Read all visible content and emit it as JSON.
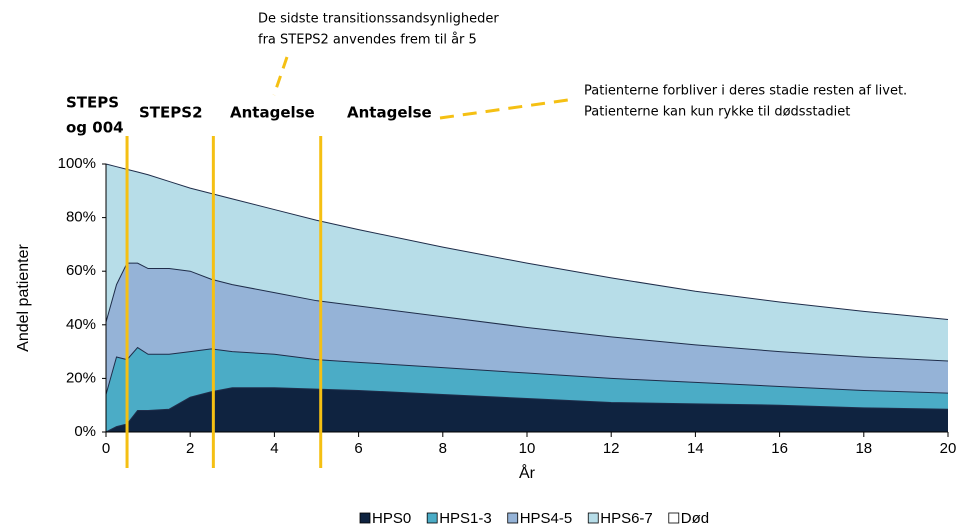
{
  "chart_data": {
    "type": "stacked_area",
    "y_label": "Andel patienter",
    "x_label": "År",
    "x": [
      0,
      0.25,
      0.5,
      0.75,
      1,
      1.5,
      2,
      2.5,
      3,
      4,
      5,
      6,
      8,
      10,
      12,
      14,
      16,
      18,
      20
    ],
    "series": [
      {
        "name": "HPS0",
        "color": "#0f2340",
        "values": [
          0,
          2,
          3,
          8,
          8,
          8.5,
          13,
          15,
          16.5,
          16.5,
          16,
          15.5,
          14,
          12.5,
          11,
          10.5,
          10,
          9,
          8.5
        ]
      },
      {
        "name": "HPS1-3",
        "color": "#4bacc6",
        "values": [
          14,
          26,
          24,
          23.5,
          21,
          20.5,
          17,
          16,
          13.5,
          12.5,
          11,
          10.5,
          10,
          9.5,
          9,
          8,
          7,
          6.5,
          6
        ]
      },
      {
        "name": "HPS4-5",
        "color": "#95b3d7",
        "values": [
          27,
          27,
          36,
          31.5,
          32,
          32,
          30,
          26,
          25,
          23,
          22,
          21,
          19,
          17,
          15.5,
          14,
          13,
          12.5,
          12
        ]
      },
      {
        "name": "HPS6-7",
        "color": "#b7dde8",
        "values": [
          59,
          44,
          35,
          34,
          35,
          32.5,
          31,
          32,
          32,
          31,
          30,
          28.5,
          26,
          24,
          22,
          20,
          18.5,
          17,
          15.5
        ]
      },
      {
        "name": "Død",
        "color": "#ffffff",
        "values": [
          0,
          1,
          2,
          3,
          4,
          6.5,
          9,
          11,
          13,
          17,
          21,
          24.5,
          31,
          37,
          42.5,
          47.5,
          51.5,
          55,
          58
        ]
      }
    ],
    "xlim": [
      0,
      20
    ],
    "xticks": [
      0,
      2,
      4,
      6,
      8,
      10,
      12,
      14,
      16,
      18,
      20
    ],
    "ylim": [
      0,
      100
    ],
    "yticks": [
      {
        "value": 0,
        "label": "0%"
      },
      {
        "value": 20,
        "label": "20%"
      },
      {
        "value": 40,
        "label": "40%"
      },
      {
        "value": 60,
        "label": "60%"
      },
      {
        "value": 80,
        "label": "80%"
      },
      {
        "value": 100,
        "label": "100%"
      }
    ],
    "vlines": [
      0.5,
      2.55,
      5.1
    ],
    "vline_color": "#f5c013",
    "phase_labels": [
      "STEPS",
      "og 004",
      "STEPS2",
      "Antagelse",
      "Antagelse"
    ],
    "annotations": [
      "De sidste transitionssandsynligheder",
      "fra STEPS2 anvendes frem til år 5",
      "Patienterne forbliver i deres stadie resten af livet.",
      "Patienterne kan kun rykke til dødsstadiet"
    ]
  }
}
